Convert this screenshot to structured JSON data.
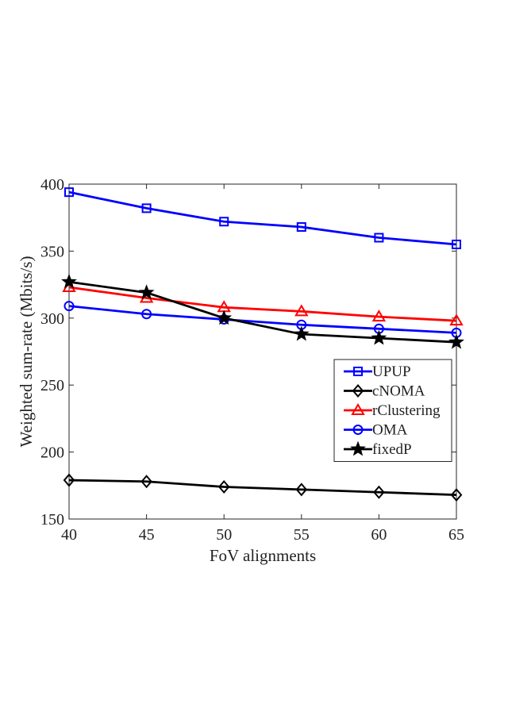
{
  "chart_data": {
    "type": "line",
    "title": "",
    "xlabel": "FoV alignments",
    "ylabel": "Weighted sum-rate (Mbits/s)",
    "x": [
      40,
      45,
      50,
      55,
      60,
      65
    ],
    "xlim": [
      40,
      65
    ],
    "ylim": [
      150,
      400
    ],
    "xticks": [
      40,
      45,
      50,
      55,
      60,
      65
    ],
    "yticks": [
      150,
      200,
      250,
      300,
      350,
      400
    ],
    "grid": false,
    "legend_position": "right",
    "series": [
      {
        "name": "UPUP",
        "color": "#0000ff",
        "marker": "square",
        "values": [
          394,
          382,
          372,
          368,
          360,
          355
        ]
      },
      {
        "name": "cNOMA",
        "color": "#000000",
        "marker": "diamond",
        "values": [
          179,
          178,
          174,
          172,
          170,
          168
        ]
      },
      {
        "name": "rClustering",
        "color": "#ff0000",
        "marker": "triangle",
        "values": [
          323,
          315,
          308,
          305,
          301,
          298
        ]
      },
      {
        "name": "OMA",
        "color": "#0000ff",
        "marker": "circle",
        "values": [
          309,
          303,
          299,
          295,
          292,
          289
        ]
      },
      {
        "name": "fixedP",
        "color": "#000000",
        "marker": "star",
        "values": [
          327,
          319,
          300,
          288,
          285,
          282
        ]
      }
    ]
  }
}
